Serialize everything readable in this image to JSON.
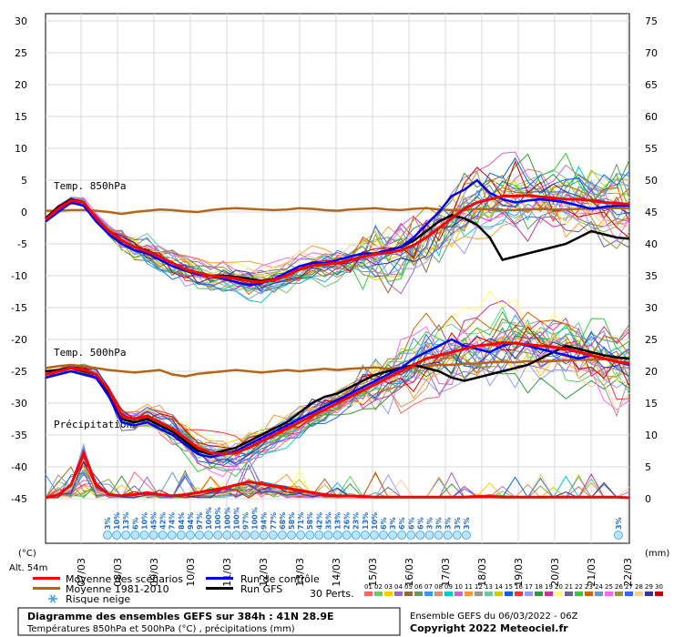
{
  "chart_data": {
    "type": "line",
    "left_axis_unit": "(°C)",
    "right_axis_unit": "(mm)",
    "altitude": "Alt. 54m",
    "left_ticks": [
      30,
      25,
      20,
      15,
      10,
      5,
      0,
      -5,
      -10,
      -15,
      -20,
      -25,
      -30,
      -35,
      -40,
      -45
    ],
    "right_ticks": [
      75,
      70,
      65,
      60,
      55,
      50,
      45,
      40,
      35,
      30,
      25,
      20,
      15,
      10,
      5,
      0
    ],
    "x_labels": [
      "07/03",
      "08/03",
      "09/03",
      "10/03",
      "11/03",
      "12/03",
      "13/03",
      "14/03",
      "15/03",
      "16/03",
      "17/03",
      "18/03",
      "19/03",
      "20/03",
      "21/03",
      "22/03"
    ],
    "panel_labels": {
      "t850": "Temp. 850hPa",
      "t500": "Temp. 500hPa",
      "precip": "Précipitations"
    },
    "series": [
      {
        "name": "Moyenne des scénarios",
        "color": "#ff0000",
        "t850": [
          -1.2,
          0.5,
          1.8,
          1.5,
          -1.0,
          -3.0,
          -4.5,
          -5.5,
          -6.2,
          -7.0,
          -8.0,
          -9.0,
          -9.6,
          -10.0,
          -10.2,
          -10.4,
          -10.8,
          -11.0,
          -10.6,
          -10.0,
          -9.0,
          -8.4,
          -8.2,
          -8.0,
          -7.6,
          -7.0,
          -6.6,
          -6.4,
          -6.0,
          -5.2,
          -4.0,
          -2.5,
          -1.0,
          0.5,
          1.5,
          2.0,
          2.5,
          2.5,
          2.6,
          2.4,
          2.2,
          2.0,
          2.0,
          1.8,
          1.5,
          1.4,
          1.2
        ],
        "t500": [
          -25.5,
          -25.0,
          -24.5,
          -24.8,
          -25.5,
          -28.0,
          -32.0,
          -32.5,
          -32.0,
          -33.0,
          -34.0,
          -35.5,
          -37.0,
          -37.8,
          -38.0,
          -37.8,
          -37.0,
          -36.0,
          -35.0,
          -34.0,
          -33.0,
          -32.0,
          -31.0,
          -30.0,
          -29.0,
          -28.0,
          -27.0,
          -26.0,
          -25.0,
          -24.0,
          -23.0,
          -22.5,
          -22.0,
          -21.5,
          -21.0,
          -20.8,
          -20.5,
          -20.6,
          -20.8,
          -21.0,
          -21.2,
          -21.5,
          -22.0,
          -22.5,
          -23.0,
          -23.5,
          -23.8
        ],
        "precip": [
          0,
          0.5,
          2,
          7,
          2,
          0.5,
          0.3,
          0.5,
          0.8,
          0.5,
          0.3,
          0.5,
          0.8,
          1.2,
          1.5,
          2,
          2.5,
          2.2,
          1.8,
          1.5,
          1.2,
          0.8,
          0.5,
          0.3,
          0.3,
          0.2,
          0.1,
          0.1,
          0.1,
          0.1,
          0.1,
          0.1,
          0.1,
          0.1,
          0.2,
          0.2,
          0.1,
          0.1,
          0.1,
          0.1,
          0.1,
          0.1,
          0.1,
          0.1,
          0.1,
          0.1,
          0
        ]
      },
      {
        "name": "Moyenne 1981-2010",
        "color": "#b86414",
        "t850": [
          0.2,
          0.2,
          0.3,
          0.3,
          0.2,
          0.0,
          -0.3,
          0.0,
          0.2,
          0.4,
          0.3,
          0.1,
          0.0,
          0.3,
          0.5,
          0.6,
          0.5,
          0.4,
          0.3,
          0.4,
          0.6,
          0.5,
          0.3,
          0.2,
          0.4,
          0.5,
          0.6,
          0.4,
          0.3,
          0.5,
          0.6,
          0.4,
          0.3,
          0.3,
          0.5,
          0.4,
          0.3,
          0.3,
          0.4,
          0.5,
          0.4,
          0.4,
          0.5,
          0.5,
          0.6,
          0.6,
          0.6
        ],
        "t500": [
          -24.5,
          -24.2,
          -24.0,
          -24.2,
          -24.5,
          -24.8,
          -25.0,
          -25.2,
          -25.0,
          -24.8,
          -25.5,
          -25.8,
          -25.4,
          -25.2,
          -25.0,
          -24.8,
          -25.0,
          -25.2,
          -25.0,
          -24.8,
          -25.0,
          -24.8,
          -24.6,
          -24.8,
          -24.6,
          -24.5,
          -24.4,
          -24.6,
          -24.4,
          -24.3,
          -24.2,
          -24.0,
          -24.0,
          -23.8,
          -23.8,
          -23.6,
          -23.5,
          -23.6,
          -23.4,
          -23.5,
          -23.4,
          -23.3,
          -23.2,
          -23.2,
          -23.1,
          -23.0,
          -23.0
        ]
      },
      {
        "name": "Run de contrôle",
        "color": "#0000ff",
        "t850": [
          -1.5,
          0.0,
          1.5,
          1.0,
          -1.5,
          -3.5,
          -5.0,
          -6.0,
          -6.5,
          -7.5,
          -8.5,
          -9.2,
          -9.8,
          -10.0,
          -10.5,
          -11.0,
          -11.5,
          -11.2,
          -10.5,
          -9.5,
          -8.5,
          -8.0,
          -8.0,
          -7.5,
          -7.0,
          -6.5,
          -6.5,
          -6.0,
          -5.5,
          -4.0,
          -2.0,
          0.0,
          2.5,
          3.5,
          5.0,
          3.0,
          2.0,
          1.5,
          1.8,
          2.0,
          1.8,
          1.5,
          1.0,
          0.5,
          0.8,
          1.0,
          1.0
        ],
        "t500": [
          -26.0,
          -25.5,
          -25.0,
          -25.5,
          -26.0,
          -29.0,
          -33.0,
          -33.5,
          -33.0,
          -34.0,
          -35.0,
          -36.5,
          -38.0,
          -38.5,
          -38.0,
          -37.5,
          -36.5,
          -35.5,
          -34.5,
          -33.5,
          -32.5,
          -31.5,
          -30.5,
          -29.5,
          -28.5,
          -27.5,
          -26.5,
          -25.5,
          -24.5,
          -23.0,
          -22.0,
          -21.0,
          -20.0,
          -21.0,
          -21.5,
          -22.0,
          -21.0,
          -20.5,
          -21.0,
          -21.5,
          -22.0,
          -22.5,
          -23.0,
          -22.5,
          -23.0,
          -23.5,
          -24.0
        ]
      },
      {
        "name": "Run GFS",
        "color": "#000000",
        "t850": [
          -1.0,
          0.8,
          2.0,
          1.5,
          -1.0,
          -3.0,
          -4.5,
          -5.5,
          -6.0,
          -7.0,
          -8.0,
          -9.0,
          -9.5,
          -10.0,
          -10.0,
          -10.2,
          -10.5,
          -10.8,
          -10.5,
          -10.0,
          -9.0,
          -8.5,
          -8.0,
          -8.0,
          -7.5,
          -7.0,
          -6.5,
          -6.0,
          -5.5,
          -4.5,
          -3.0,
          -1.5,
          -0.5,
          -1.0,
          -2.0,
          -4.0,
          -7.5,
          -7.0,
          -6.5,
          -6.0,
          -5.5,
          -5.0,
          -4.0,
          -3.0,
          -3.5,
          -4.0,
          -4.2
        ],
        "t500": [
          -25.0,
          -24.8,
          -24.5,
          -25.0,
          -25.5,
          -28.5,
          -32.5,
          -33.0,
          -32.5,
          -33.5,
          -34.5,
          -36.0,
          -37.5,
          -38.0,
          -37.5,
          -37.0,
          -36.0,
          -35.0,
          -34.0,
          -33.0,
          -31.5,
          -30.0,
          -29.0,
          -28.5,
          -27.5,
          -26.5,
          -25.5,
          -25.0,
          -24.5,
          -24.0,
          -24.5,
          -25.0,
          -26.0,
          -26.5,
          -26.0,
          -25.5,
          -25.0,
          -24.5,
          -24.0,
          -23.0,
          -22.0,
          -21.0,
          -21.5,
          -22.0,
          -22.5,
          -22.8,
          -23.0
        ]
      }
    ],
    "legend": [
      {
        "label": "Moyenne des scénarios",
        "color": "#ff0000"
      },
      {
        "label": "Moyenne 1981-2010",
        "color": "#b86414"
      },
      {
        "label": "Run de contrôle",
        "color": "#0000ff"
      },
      {
        "label": "Run GFS",
        "color": "#000000"
      }
    ],
    "snow_risk_label": "Risque neige",
    "snow_risk_pct": [
      "3%",
      "10%",
      "13%",
      "6%",
      "10%",
      "45%",
      "42%",
      "74%",
      "84%",
      "94%",
      "97%",
      "100%",
      "100%",
      "100%",
      "100%",
      "97%",
      "100%",
      "94%",
      "77%",
      "68%",
      "58%",
      "71%",
      "58%",
      "42%",
      "35%",
      "13%",
      "26%",
      "23%",
      "13%",
      "10%",
      "6%",
      "3%",
      "6%",
      "6%",
      "6%",
      "3%",
      "3%",
      "3%",
      "3%",
      "3%"
    ],
    "snow_risk_last": "3%",
    "perturbations_label": "30 Perts.",
    "perturbation_ids": [
      "01",
      "02",
      "03",
      "04",
      "05",
      "06",
      "07",
      "08",
      "09",
      "10",
      "11",
      "12",
      "13",
      "14",
      "15",
      "16",
      "17",
      "18",
      "19",
      "20",
      "21",
      "22",
      "23",
      "24",
      "25",
      "26",
      "27",
      "28",
      "29",
      "30"
    ],
    "perturbation_colors": [
      "#ff6666",
      "#66cc66",
      "#ffcc00",
      "#9966cc",
      "#996633",
      "#669966",
      "#3399ff",
      "#cc9966",
      "#00cccc",
      "#cc66cc",
      "#ff9933",
      "#999999",
      "#66cc99",
      "#cccc00",
      "#0066cc",
      "#ff3333",
      "#9999ff",
      "#339933",
      "#cc3399",
      "#ffff66",
      "#666699",
      "#33cc33",
      "#cc6600",
      "#6699cc",
      "#ff66ff",
      "#999933",
      "#3366ff",
      "#ffcc99",
      "#333399",
      "#cc0000"
    ],
    "footer_left_title": "Diagramme des ensembles GEFS sur 384h : 41N 28.9E",
    "footer_left_sub": "Températures 850hPa et 500hPa (°C) , précipitations (mm)",
    "footer_right_title": "Ensemble GEFS du 06/03/2022 - 06Z",
    "footer_right_sub": "Copyright 2022 Meteociel.fr"
  }
}
